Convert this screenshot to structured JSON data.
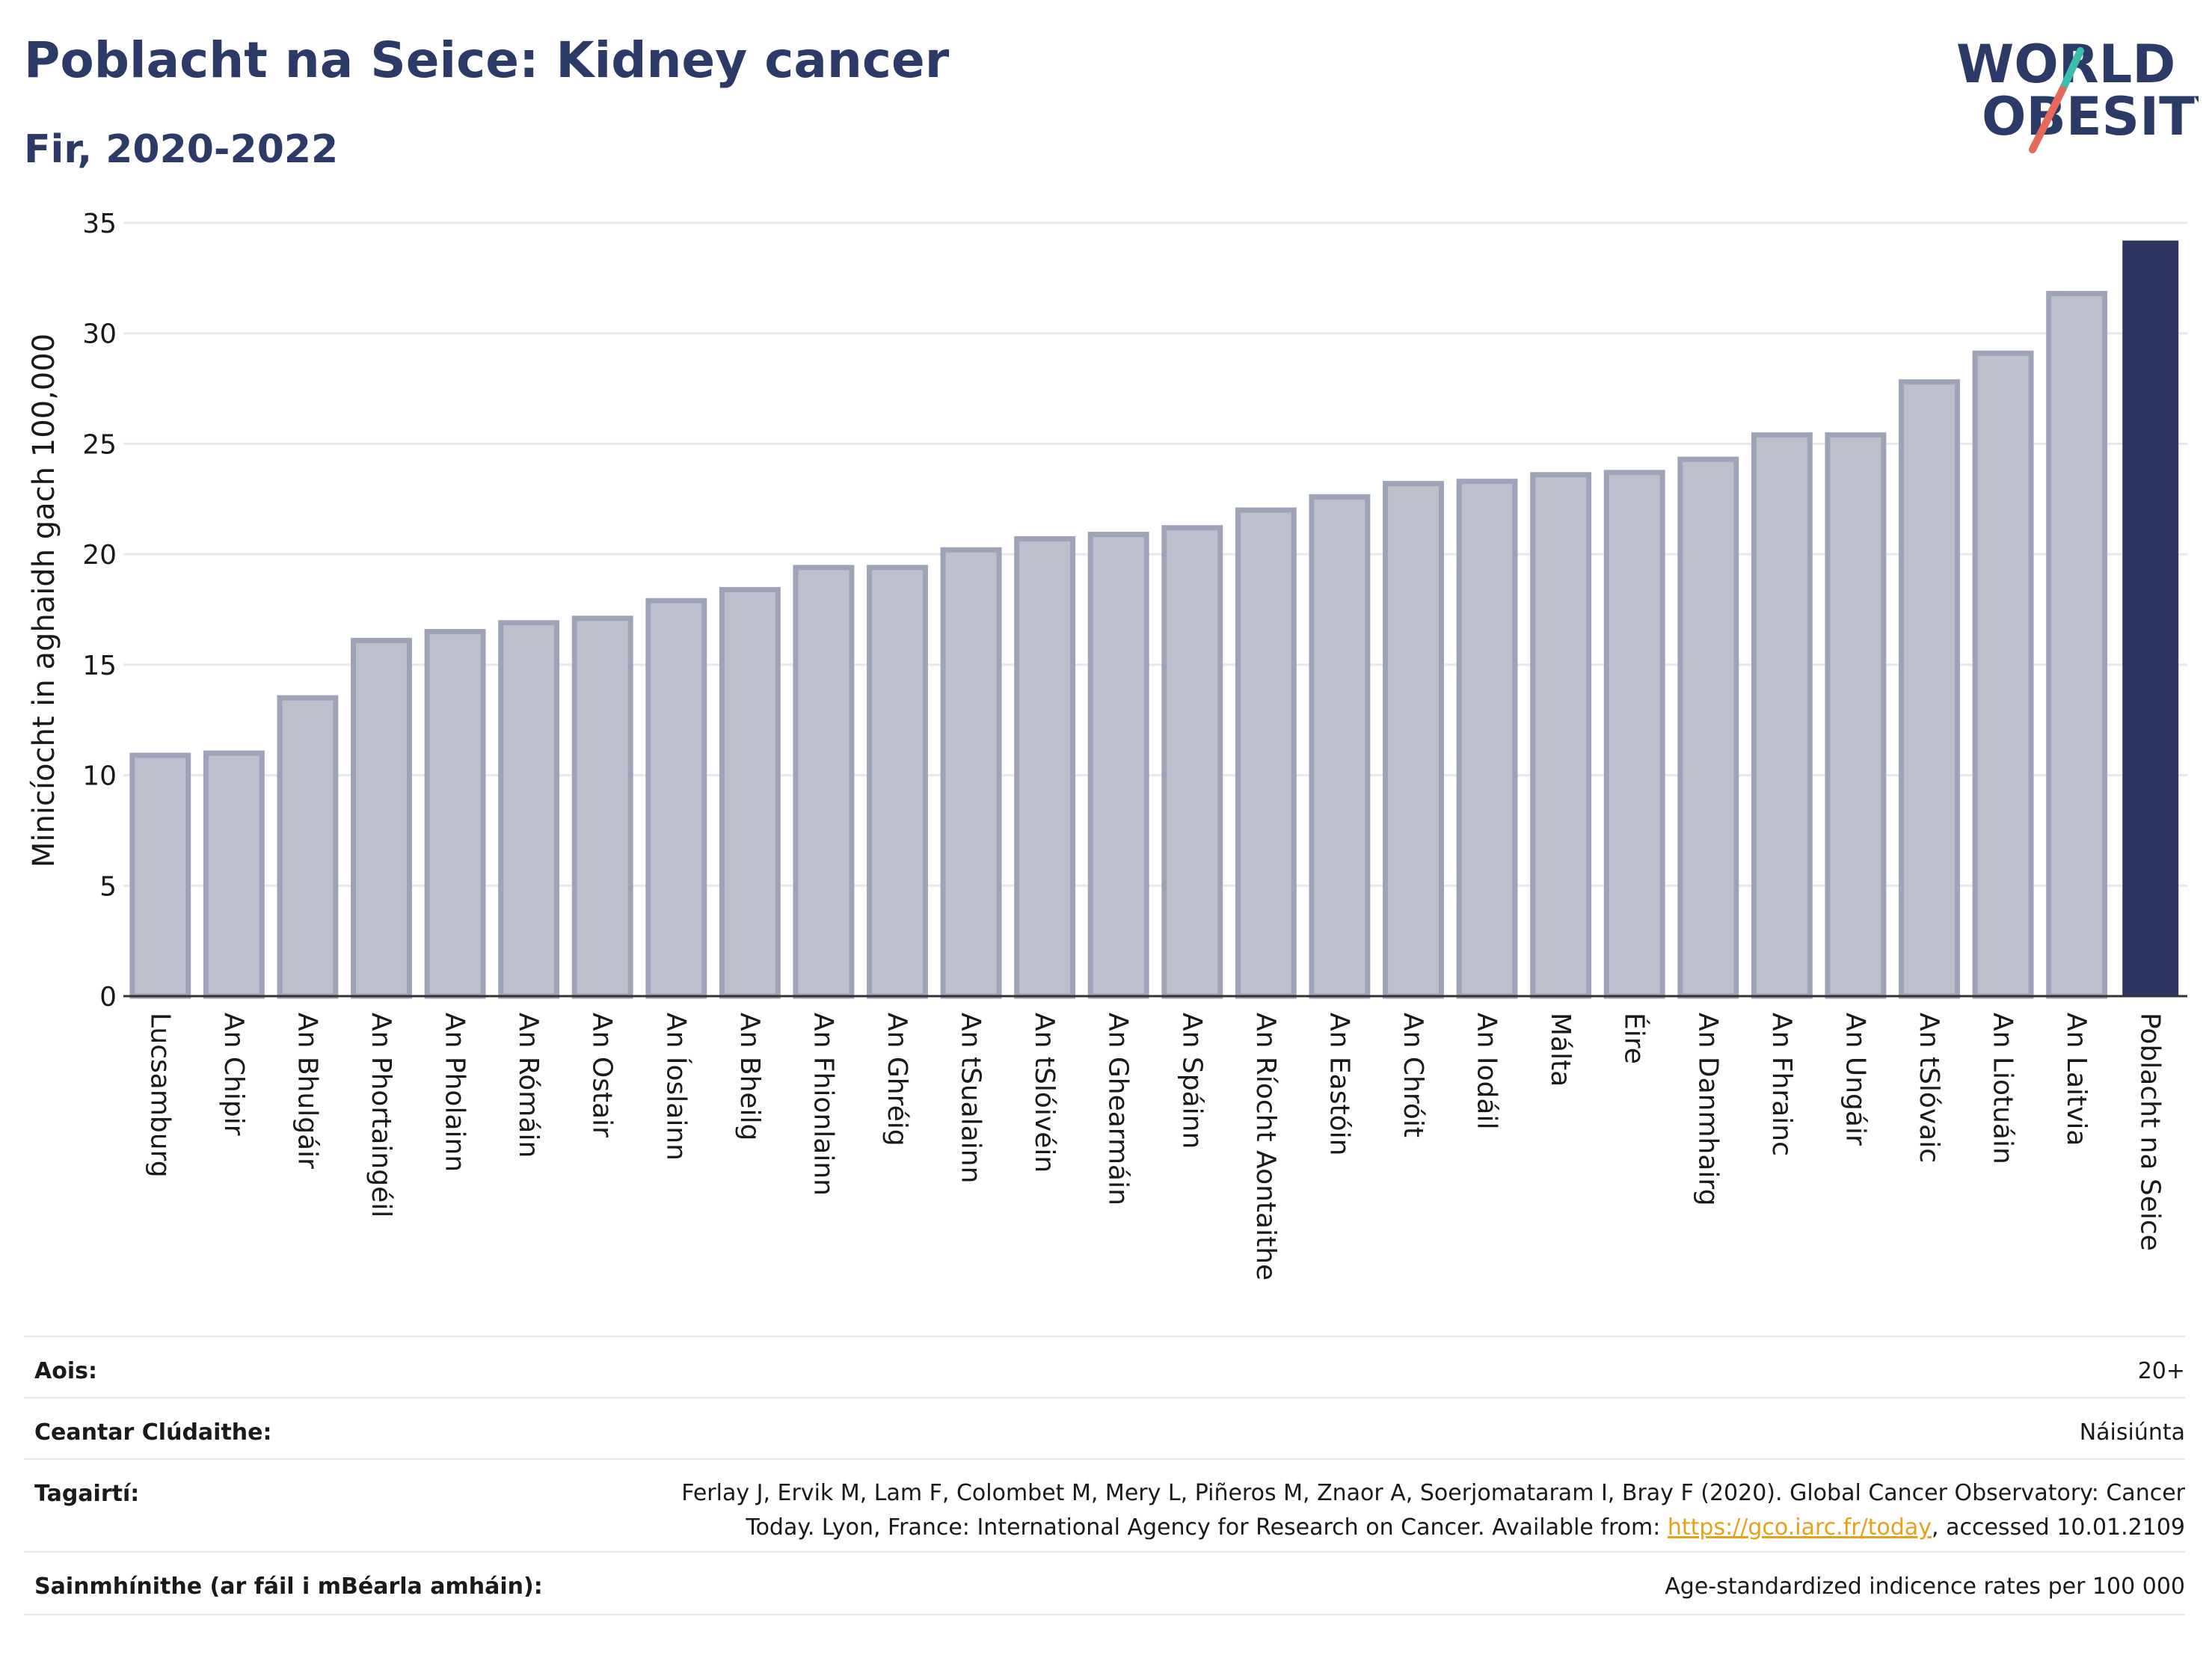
{
  "header": {
    "title": "Poblacht na Seice: Kidney cancer",
    "subtitle": "Fir, 2020-2022"
  },
  "logo": {
    "line1": "WORLD",
    "line2": "OBESITY",
    "accent_colors": [
      "#3bbfad",
      "#e8685a"
    ]
  },
  "chart_data": {
    "type": "bar",
    "ylabel": "Minicíocht in aghaidh gach 100,000",
    "ylim": [
      0,
      35
    ],
    "yticks": [
      0,
      5,
      10,
      15,
      20,
      25,
      30,
      35
    ],
    "grid": true,
    "categories": [
      "Lucsamburg",
      "An Chipir",
      "An Bhulgáir",
      "An Phortaingéil",
      "An Pholainn",
      "An Rómáin",
      "An Ostair",
      "An Íoslainn",
      "An Bheilg",
      "An Fhionlainn",
      "An Ghréig",
      "An tSualainn",
      "An tSlóivéin",
      "An Ghearmáin",
      "An Spáinn",
      "An Ríocht Aontaithe",
      "An Eastóin",
      "An Chróit",
      "An Iodáil",
      "Málta",
      "Éire",
      "An Danmhairg",
      "An Fhrainc",
      "An Ungáir",
      "An tSlóvaic",
      "An Liotuáin",
      "An Laitvia",
      "Poblacht na Seice"
    ],
    "values": [
      10.9,
      11.0,
      13.5,
      16.1,
      16.5,
      16.9,
      17.1,
      17.9,
      18.4,
      19.4,
      19.4,
      20.2,
      20.7,
      20.9,
      21.2,
      22.0,
      22.6,
      23.2,
      23.3,
      23.6,
      23.7,
      24.3,
      25.4,
      25.4,
      27.8,
      29.1,
      31.8,
      34.2
    ],
    "highlight_index": 27,
    "colors": {
      "bar_fill": "#bcc0cd",
      "bar_stroke": "#9ea3b8",
      "highlight": "#2b3560",
      "grid": "#e6e8ee",
      "axis": "#333333"
    }
  },
  "info": {
    "age_label": "Aois:",
    "age_value": "20+",
    "area_label": "Ceantar Clúdaithe:",
    "area_value": "Náisiúnta",
    "ref_label": "Tagairtí:",
    "ref_text_1": "Ferlay J, Ervik M, Lam F, Colombet M, Mery L, Piñeros M, Znaor A, Soerjomataram I, Bray F (2020). Global Cancer Observatory: Cancer",
    "ref_text_2": "Today. Lyon, France: International Agency for Research on Cancer. Available from: ",
    "ref_link": "https://gco.iarc.fr/today",
    "ref_text_3": ", accessed 10.01.2109",
    "def_label": "Sainmhínithe (ar fáil i mBéarla amháin):",
    "def_value": "Age-standardized indicence rates per 100 000"
  }
}
